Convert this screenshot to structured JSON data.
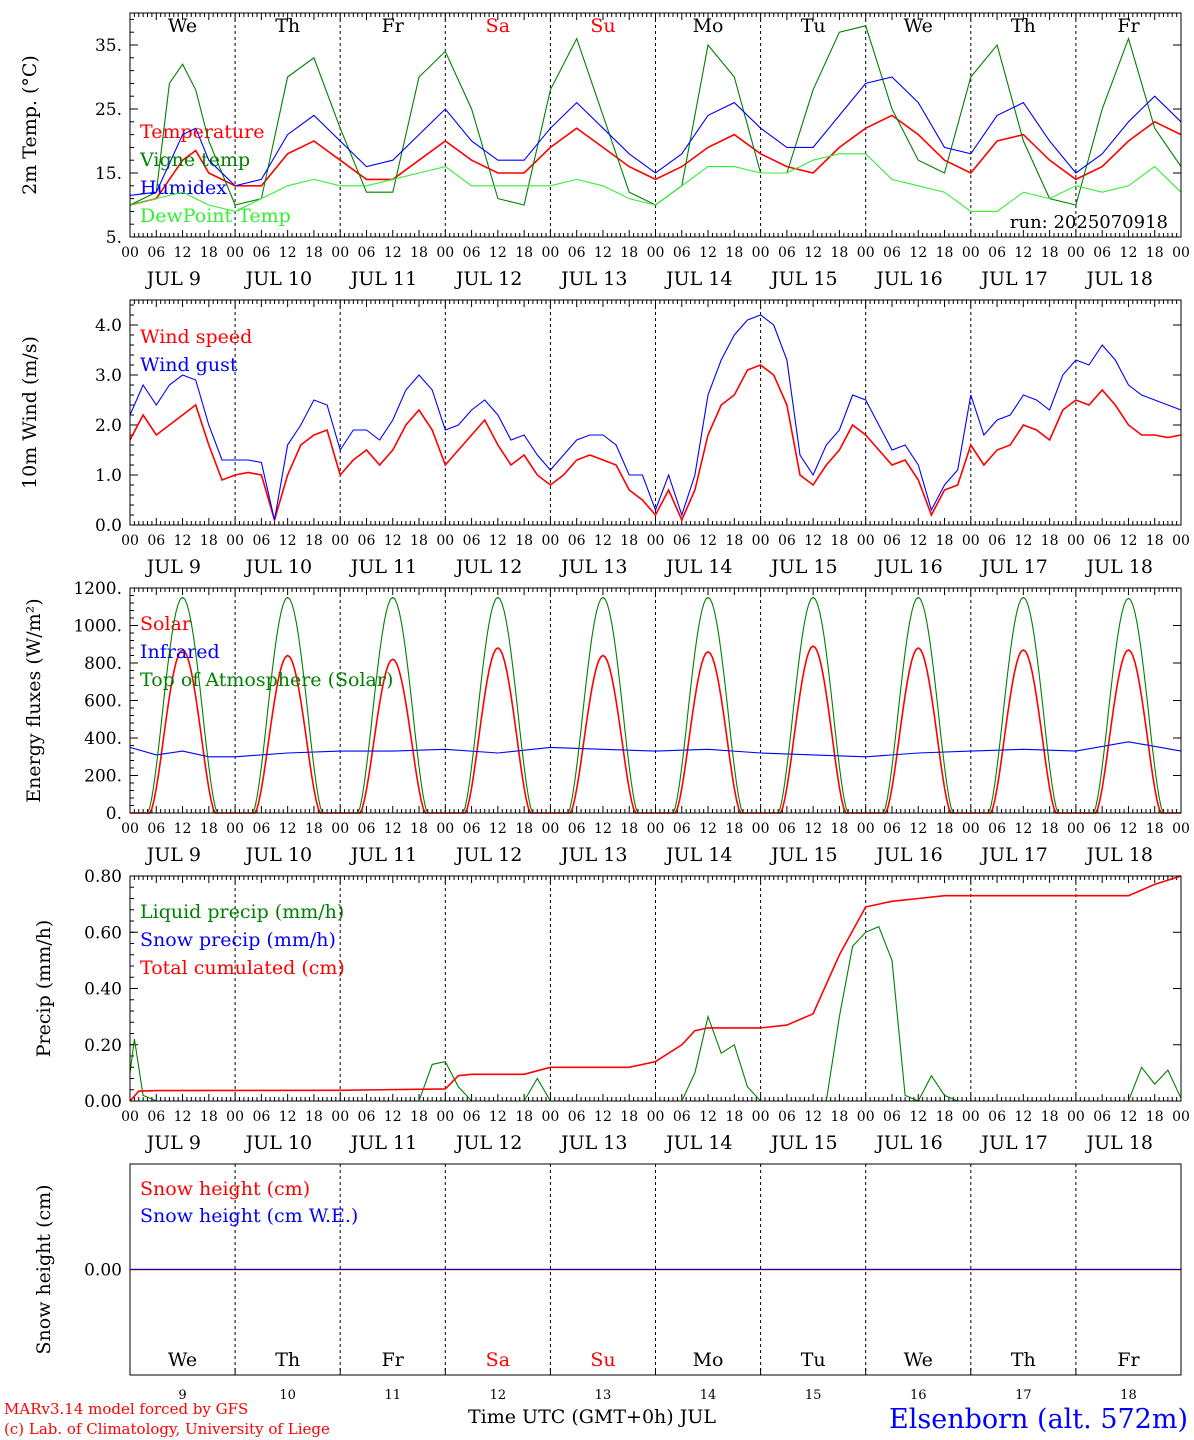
{
  "colors": {
    "red": "#ff0000",
    "green": "#008000",
    "blue": "#0000ff",
    "lightgreen": "#33ee33",
    "black": "#000000"
  },
  "footer": {
    "model": "MARv3.14 model forced by GFS",
    "copyright": "(c) Lab. of Climatology, University of Liege",
    "xlabel": "Time UTC (GMT+0h) JUL",
    "station": "Elsenborn (alt. 572m)"
  },
  "days": {
    "weekday_labels": [
      "We",
      "Th",
      "Fr",
      "Sa",
      "Su",
      "Mo",
      "Tu",
      "We",
      "Th",
      "Fr"
    ],
    "weekend_flags": [
      false,
      false,
      false,
      true,
      true,
      false,
      false,
      false,
      false,
      false
    ],
    "date_labels": [
      "JUL  9",
      "JUL 10",
      "JUL 11",
      "JUL 12",
      "JUL 13",
      "JUL 14",
      "JUL 15",
      "JUL 16",
      "JUL 17",
      "JUL 18"
    ],
    "day_numbers": [
      "9",
      "10",
      "11",
      "12",
      "13",
      "14",
      "15",
      "16",
      "17",
      "18"
    ],
    "hour_ticks": [
      "00",
      "06",
      "12",
      "18"
    ],
    "final_tick": "00"
  },
  "chart_data": [
    {
      "type": "line",
      "ylabel": "2m Temp. (°C)",
      "ylim": [
        5,
        40
      ],
      "yticks": [
        "5.",
        "15.",
        "25.",
        "35."
      ],
      "ytick_values": [
        5,
        15,
        25,
        35
      ],
      "run_label": "run: 2025070918",
      "x_unit": "hours from 2025-07-09 00 UTC",
      "series": [
        {
          "name": "Temperature",
          "color": "red",
          "x": [
            0,
            6,
            12,
            15,
            18,
            24,
            30,
            36,
            42,
            48,
            54,
            60,
            66,
            72,
            78,
            84,
            90,
            96,
            102,
            108,
            114,
            120,
            126,
            132,
            138,
            144,
            150,
            156,
            162,
            168,
            174,
            180,
            186,
            192,
            198,
            204,
            210,
            216,
            222,
            228,
            234,
            240
          ],
          "values": [
            10,
            11,
            17,
            18.5,
            15,
            13,
            13,
            18,
            20,
            17,
            14,
            14,
            17,
            20,
            17,
            15,
            15,
            19,
            22,
            19,
            16,
            14,
            16,
            19,
            21,
            18,
            16,
            15,
            19,
            22,
            24,
            21,
            17,
            15,
            20,
            21,
            17,
            14,
            16,
            20,
            23,
            21
          ]
        },
        {
          "name": "Vigne temp",
          "color": "green",
          "x": [
            0,
            6,
            9,
            12,
            15,
            18,
            24,
            30,
            36,
            42,
            48,
            54,
            60,
            66,
            72,
            78,
            84,
            90,
            96,
            102,
            108,
            114,
            120,
            126,
            132,
            138,
            144,
            150,
            156,
            162,
            168,
            174,
            180,
            186,
            192,
            198,
            204,
            210,
            216,
            222,
            228,
            234,
            240
          ],
          "values": [
            10,
            12,
            29,
            32,
            28,
            20,
            10,
            11,
            30,
            33,
            22,
            12,
            12,
            30,
            34,
            25,
            11,
            10,
            28,
            36,
            24,
            12,
            10,
            13,
            35,
            30,
            15,
            15,
            28,
            37,
            38,
            25,
            17,
            15,
            30,
            35,
            20,
            11,
            10,
            25,
            36,
            22,
            16
          ]
        },
        {
          "name": "Humidex",
          "color": "blue",
          "x": [
            0,
            6,
            12,
            15,
            18,
            24,
            30,
            36,
            42,
            48,
            54,
            60,
            66,
            72,
            78,
            84,
            90,
            96,
            102,
            108,
            114,
            120,
            126,
            132,
            138,
            144,
            150,
            156,
            162,
            168,
            174,
            180,
            186,
            192,
            198,
            204,
            210,
            216,
            222,
            228,
            234,
            240
          ],
          "values": [
            11.5,
            12,
            21,
            22,
            17,
            13,
            14,
            21,
            24,
            20,
            16,
            17,
            21,
            25,
            20,
            17,
            17,
            22,
            26,
            22,
            18,
            15,
            18,
            24,
            26,
            22,
            19,
            19,
            24,
            29,
            30,
            26,
            19,
            18,
            24,
            26,
            20,
            15,
            18,
            23,
            27,
            23
          ]
        },
        {
          "name": "DewPoint Temp",
          "color": "lightgreen",
          "x": [
            0,
            6,
            12,
            18,
            24,
            30,
            36,
            42,
            48,
            54,
            60,
            66,
            72,
            78,
            84,
            90,
            96,
            102,
            108,
            114,
            120,
            126,
            132,
            138,
            144,
            150,
            156,
            162,
            168,
            174,
            180,
            186,
            192,
            198,
            204,
            210,
            216,
            222,
            228,
            234,
            240
          ],
          "values": [
            10,
            11,
            12,
            10,
            9,
            11,
            13,
            14,
            13,
            13,
            14,
            15,
            16,
            13,
            13,
            13,
            13,
            14,
            13,
            11,
            10,
            13,
            16,
            16,
            15,
            15,
            17,
            18,
            18,
            14,
            13,
            12,
            9,
            9,
            12,
            11,
            13,
            12,
            13,
            16,
            12
          ]
        }
      ]
    },
    {
      "type": "line",
      "ylabel": "10m Wind (m/s)",
      "ylim": [
        0,
        4.5
      ],
      "yticks": [
        "0.0",
        "1.0",
        "2.0",
        "3.0",
        "4.0"
      ],
      "ytick_values": [
        0,
        1,
        2,
        3,
        4
      ],
      "series": [
        {
          "name": "Wind speed",
          "color": "red",
          "x": [
            0,
            3,
            6,
            9,
            12,
            15,
            18,
            21,
            24,
            27,
            30,
            33,
            36,
            39,
            42,
            45,
            48,
            51,
            54,
            57,
            60,
            63,
            66,
            69,
            72,
            75,
            78,
            81,
            84,
            87,
            90,
            93,
            96,
            99,
            102,
            105,
            108,
            111,
            114,
            117,
            120,
            123,
            126,
            129,
            132,
            135,
            138,
            141,
            144,
            147,
            150,
            153,
            156,
            159,
            162,
            165,
            168,
            171,
            174,
            177,
            180,
            183,
            186,
            189,
            192,
            195,
            198,
            201,
            204,
            207,
            210,
            213,
            216,
            219,
            222,
            225,
            228,
            231,
            234,
            237,
            240
          ],
          "values": [
            1.7,
            2.2,
            1.8,
            2.0,
            2.2,
            2.4,
            1.6,
            0.9,
            1.0,
            1.05,
            1.0,
            0.1,
            1.0,
            1.6,
            1.8,
            1.9,
            1.0,
            1.3,
            1.5,
            1.2,
            1.5,
            2.0,
            2.3,
            1.9,
            1.2,
            1.5,
            1.8,
            2.1,
            1.6,
            1.2,
            1.4,
            1.0,
            0.8,
            1.0,
            1.3,
            1.4,
            1.3,
            1.2,
            0.7,
            0.5,
            0.2,
            0.7,
            0.1,
            0.7,
            1.8,
            2.4,
            2.6,
            3.1,
            3.2,
            3.0,
            2.4,
            1.0,
            0.8,
            1.2,
            1.5,
            2.0,
            1.8,
            1.5,
            1.2,
            1.3,
            0.9,
            0.2,
            0.7,
            0.8,
            1.6,
            1.2,
            1.5,
            1.6,
            2.0,
            1.9,
            1.7,
            2.3,
            2.5,
            2.4,
            2.7,
            2.4,
            2.0,
            1.8,
            1.8,
            1.75,
            1.8
          ]
        },
        {
          "name": "Wind gust",
          "color": "blue",
          "x": [
            0,
            3,
            6,
            9,
            12,
            15,
            18,
            21,
            24,
            27,
            30,
            33,
            36,
            39,
            42,
            45,
            48,
            51,
            54,
            57,
            60,
            63,
            66,
            69,
            72,
            75,
            78,
            81,
            84,
            87,
            90,
            93,
            96,
            99,
            102,
            105,
            108,
            111,
            114,
            117,
            120,
            123,
            126,
            129,
            132,
            135,
            138,
            141,
            144,
            147,
            150,
            153,
            156,
            159,
            162,
            165,
            168,
            171,
            174,
            177,
            180,
            183,
            186,
            189,
            192,
            195,
            198,
            201,
            204,
            207,
            210,
            213,
            216,
            219,
            222,
            225,
            228,
            231,
            234,
            237,
            240
          ],
          "values": [
            2.2,
            2.8,
            2.4,
            2.8,
            3.0,
            2.9,
            2.0,
            1.3,
            1.3,
            1.3,
            1.25,
            0.1,
            1.6,
            2.0,
            2.5,
            2.4,
            1.5,
            1.9,
            1.9,
            1.7,
            2.1,
            2.7,
            3.0,
            2.7,
            1.9,
            2.0,
            2.3,
            2.5,
            2.2,
            1.7,
            1.8,
            1.4,
            1.1,
            1.4,
            1.7,
            1.8,
            1.8,
            1.6,
            1.0,
            1.0,
            0.3,
            1.0,
            0.2,
            1.0,
            2.6,
            3.3,
            3.8,
            4.1,
            4.2,
            4.0,
            3.3,
            1.4,
            1.0,
            1.6,
            1.9,
            2.6,
            2.5,
            2.0,
            1.5,
            1.6,
            1.2,
            0.3,
            0.8,
            1.1,
            2.6,
            1.8,
            2.1,
            2.2,
            2.6,
            2.5,
            2.3,
            3.0,
            3.3,
            3.2,
            3.6,
            3.3,
            2.8,
            2.6,
            2.5,
            2.4,
            2.3
          ]
        }
      ]
    },
    {
      "type": "line",
      "ylabel": "Energy fluxes (W/m²)",
      "ylim": [
        0,
        1200
      ],
      "yticks": [
        "0.",
        "200.",
        "400.",
        "600.",
        "800.",
        "1000.",
        "1200."
      ],
      "ytick_values": [
        0,
        200,
        400,
        600,
        800,
        1000,
        1200
      ],
      "series": [
        {
          "name": "Solar",
          "color": "red",
          "solar_noon_hour": 12,
          "day_length_hours": 15,
          "daily_peaks": [
            870,
            840,
            820,
            880,
            840,
            860,
            890,
            880,
            870,
            870
          ]
        },
        {
          "name": "Infrared",
          "color": "blue",
          "x": [
            0,
            6,
            12,
            18,
            24,
            36,
            48,
            60,
            72,
            84,
            96,
            108,
            120,
            132,
            144,
            156,
            168,
            180,
            192,
            204,
            216,
            228,
            240
          ],
          "values": [
            350,
            310,
            330,
            300,
            300,
            320,
            330,
            330,
            340,
            320,
            350,
            340,
            330,
            340,
            320,
            310,
            300,
            320,
            330,
            340,
            330,
            380,
            330
          ]
        },
        {
          "name": "Top of Atmosphere (Solar)",
          "color": "green",
          "solar_noon_hour": 12,
          "day_length_hours": 16,
          "daily_peaks": [
            1150,
            1150,
            1150,
            1150,
            1150,
            1150,
            1150,
            1150,
            1150,
            1145
          ]
        }
      ]
    },
    {
      "type": "line",
      "ylabel": "Precip (mm/h)",
      "ylim": [
        0,
        0.8
      ],
      "yticks": [
        "0.00",
        "0.20",
        "0.40",
        "0.60",
        "0.80"
      ],
      "ytick_values": [
        0,
        0.2,
        0.4,
        0.6,
        0.8
      ],
      "series": [
        {
          "name": "Liquid precip (mm/h)",
          "color": "green",
          "x": [
            0,
            1,
            3,
            6,
            66,
            69,
            72,
            75,
            78,
            90,
            93,
            96,
            126,
            129,
            132,
            135,
            138,
            141,
            144,
            159,
            162,
            165,
            168,
            171,
            174,
            177,
            180,
            183,
            186,
            189,
            228,
            231,
            234,
            237,
            240
          ],
          "values": [
            0.1,
            0.22,
            0.02,
            0,
            0,
            0.13,
            0.14,
            0.05,
            0,
            0,
            0.08,
            0,
            0,
            0.1,
            0.3,
            0.17,
            0.2,
            0.05,
            0,
            0,
            0.3,
            0.55,
            0.6,
            0.62,
            0.5,
            0.02,
            0,
            0.09,
            0.02,
            0,
            0,
            0.12,
            0.06,
            0.11,
            0.01
          ]
        },
        {
          "name": "Snow precip (mm/h)",
          "color": "blue",
          "x": [
            0,
            240
          ],
          "values": [
            0,
            0
          ]
        },
        {
          "name": "Total cumulated (cm)",
          "color": "red",
          "x": [
            0,
            2,
            6,
            48,
            72,
            75,
            78,
            90,
            96,
            114,
            120,
            126,
            129,
            132,
            135,
            144,
            150,
            156,
            162,
            168,
            171,
            174,
            180,
            186,
            192,
            228,
            234,
            240
          ],
          "values": [
            0,
            0.035,
            0.037,
            0.038,
            0.043,
            0.09,
            0.095,
            0.095,
            0.12,
            0.12,
            0.14,
            0.2,
            0.25,
            0.26,
            0.26,
            0.26,
            0.27,
            0.31,
            0.52,
            0.69,
            0.7,
            0.71,
            0.72,
            0.73,
            0.73,
            0.73,
            0.77,
            0.8
          ]
        }
      ]
    },
    {
      "type": "line",
      "ylabel": "Snow height (cm)",
      "ylim": [
        -1,
        1
      ],
      "yticks": [
        "0.00"
      ],
      "ytick_values": [
        0
      ],
      "series": [
        {
          "name": "Snow height (cm)",
          "color": "red",
          "x": [
            0,
            240
          ],
          "values": [
            0,
            0
          ]
        },
        {
          "name": "Snow height (cm W.E.)",
          "color": "blue",
          "x": [
            0,
            240
          ],
          "values": [
            0,
            0
          ]
        }
      ]
    }
  ]
}
